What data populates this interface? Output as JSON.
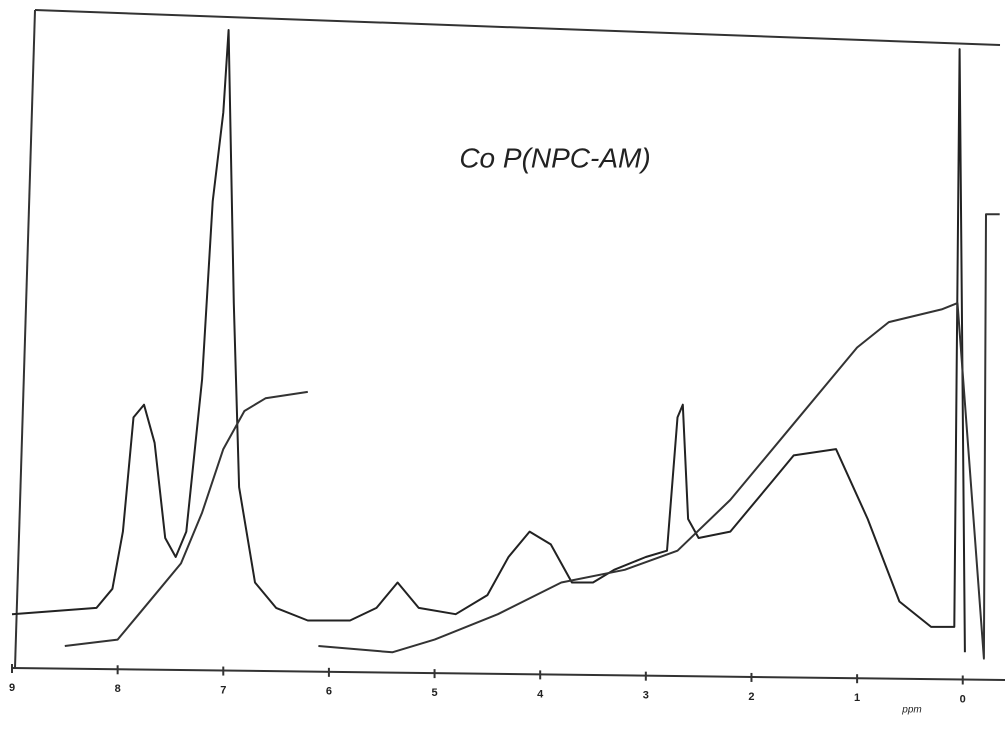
{
  "chart_data": {
    "type": "line",
    "title": "Co P(NPC-AM)",
    "x_label": "ppm",
    "xlim": [
      9,
      -0.4
    ],
    "ylim": [
      0,
      100
    ],
    "xticks": [
      9,
      8,
      7,
      6,
      5,
      4,
      3,
      2,
      1,
      0
    ],
    "series": [
      {
        "name": "spectrum",
        "color": "#222222",
        "x": [
          9.0,
          8.2,
          8.05,
          7.95,
          7.85,
          7.75,
          7.65,
          7.55,
          7.45,
          7.35,
          7.2,
          7.1,
          7.0,
          6.95,
          6.9,
          6.85,
          6.7,
          6.5,
          6.2,
          5.8,
          5.55,
          5.35,
          5.15,
          4.8,
          4.5,
          4.3,
          4.1,
          3.9,
          3.7,
          3.5,
          3.3,
          3.0,
          2.8,
          2.7,
          2.65,
          2.6,
          2.5,
          2.2,
          1.8,
          1.6,
          1.2,
          0.9,
          0.6,
          0.3,
          0.08,
          0.03,
          -0.02
        ],
        "values": [
          8,
          9,
          12,
          21,
          39,
          41,
          35,
          20,
          17,
          21,
          45,
          73,
          87,
          100,
          57,
          28,
          13,
          9,
          7,
          7,
          9,
          13,
          9,
          8,
          11,
          17,
          21,
          19,
          13,
          13,
          15,
          17,
          18,
          39,
          41,
          23,
          20,
          21,
          29,
          33,
          34,
          23,
          10,
          6,
          6,
          97,
          2
        ]
      },
      {
        "name": "integral",
        "color": "#333333",
        "x": [
          8.5,
          8.0,
          7.8,
          7.6,
          7.4,
          7.2,
          7.0,
          6.8,
          6.6,
          6.2,
          6.15,
          6.1,
          5.4,
          5.0,
          4.4,
          3.8,
          3.2,
          2.7,
          2.2,
          1.6,
          1.0,
          0.7,
          0.2,
          0.05,
          -0.2,
          -0.22,
          -0.35
        ],
        "values": [
          3,
          4,
          8,
          12,
          16,
          24,
          34,
          40,
          42,
          43,
          null,
          3,
          2,
          4,
          8,
          13,
          15,
          18,
          26,
          38,
          50,
          54,
          56,
          57,
          1,
          71,
          71
        ]
      }
    ]
  }
}
